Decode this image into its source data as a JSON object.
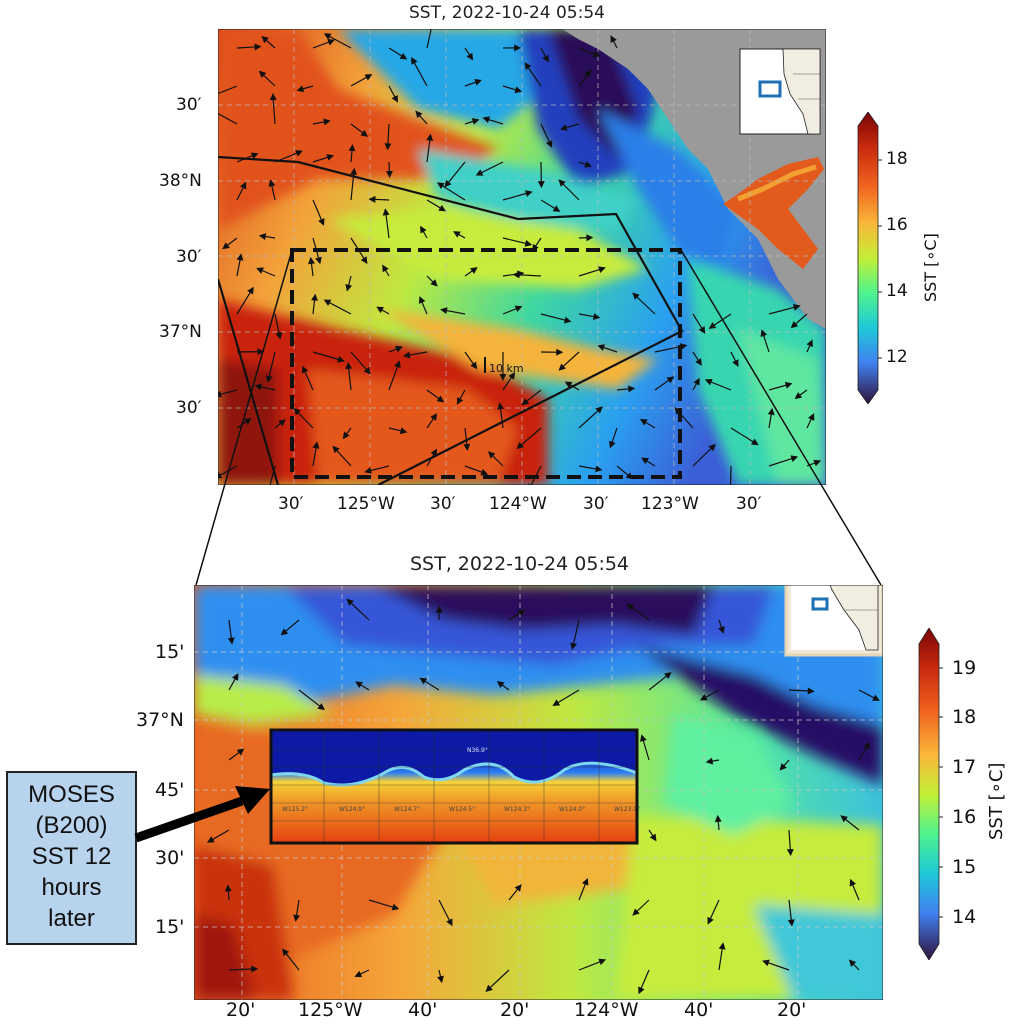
{
  "top_panel": {
    "title": "SST, 2022-10-24 05:54",
    "lat_ticks": [
      "30′",
      "38°N",
      "30′",
      "37°N",
      "30′"
    ],
    "lon_ticks": [
      "30′",
      "125°W",
      "30′",
      "124°W",
      "30′",
      "123°W",
      "30′"
    ],
    "scale_label": "10 km",
    "colorbar": {
      "label": "SST [∘C]",
      "ticks": [
        "18",
        "16",
        "14",
        "12"
      ],
      "range": [
        11,
        19
      ]
    }
  },
  "bottom_panel": {
    "title": "SST, 2022-10-24 05:54",
    "lat_ticks": [
      "15'",
      "37°N",
      "45'",
      "30'",
      "15'"
    ],
    "lon_ticks": [
      "20'",
      "125°W",
      "40'",
      "20'",
      "124°W",
      "40'",
      "20'"
    ],
    "colorbar": {
      "label": "SST [∘C]",
      "ticks": [
        "19",
        "18",
        "17",
        "16",
        "15",
        "14"
      ],
      "range": [
        13.3,
        19.6
      ]
    },
    "inset_labels": [
      "N36.9°",
      "W125.2°",
      "W124.9°",
      "W124.7°",
      "W124.5°",
      "W124.3°",
      "W124.0°",
      "W123.9°"
    ]
  },
  "callout": {
    "text_lines": [
      "MOSES",
      "(B200)",
      "SST 12",
      "hours",
      "later"
    ]
  },
  "colors": {
    "land": "#9a9a9a",
    "callout_bg": "#b8d3ee",
    "region_box": "#1f6fb5",
    "cold": "#2c0a5a",
    "warm": "#c7200f"
  }
}
